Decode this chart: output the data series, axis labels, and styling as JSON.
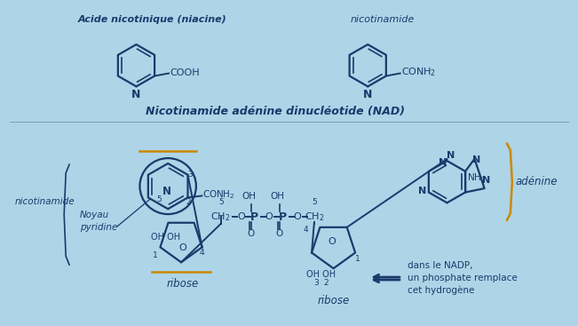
{
  "bg_color": "#aed4e8",
  "bond_color": "#1a3a6b",
  "text_color": "#1a3a6b",
  "orange_color": "#cc8800",
  "title_upper": "Nicotinamide adénine dinucléotide (NAD)",
  "label_nicotinamide_left": "nicotinamide",
  "label_adenine_right": "adénine",
  "label_noyau": "Noyau\npyridine",
  "label_ribose_left": "ribose",
  "label_ribose_right": "ribose",
  "label_nadp": "dans le NADP,\nun phosphate remplace\ncet hydrogène",
  "top_left_title": "Acide nicotinique (niacine)",
  "top_right_title": "nicotinamide",
  "figsize": [
    6.51,
    3.67
  ],
  "dpi": 100
}
